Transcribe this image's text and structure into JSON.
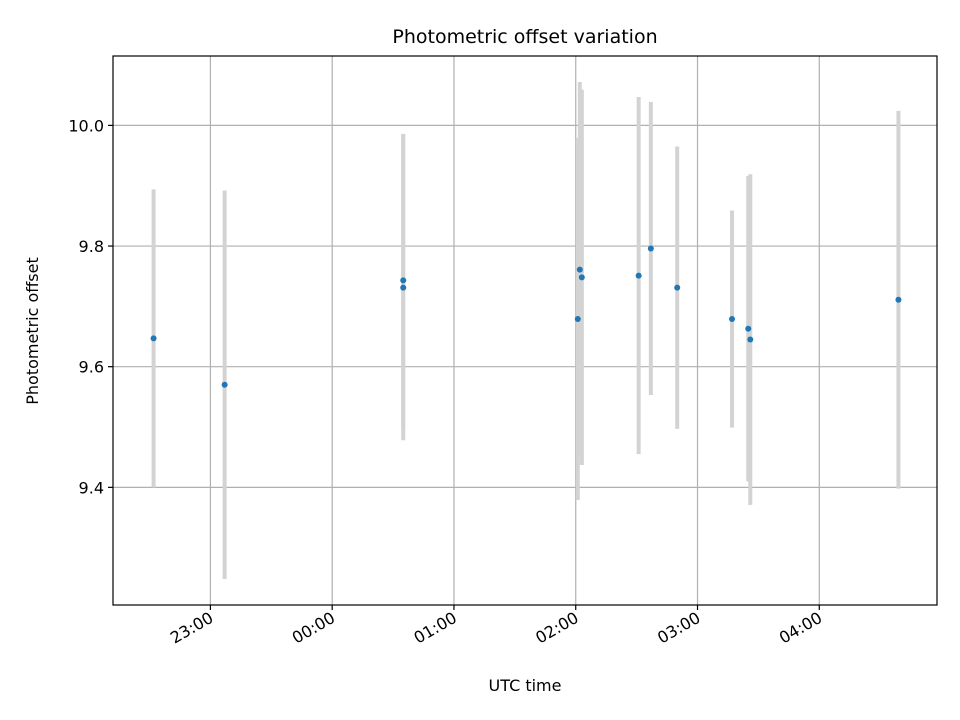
{
  "chart_data": {
    "type": "scatter",
    "title": "Photometric offset variation",
    "xlabel": "UTC time",
    "ylabel": "Photometric offset",
    "x_axis": {
      "range": [
        "22:12",
        "04:58"
      ],
      "ticks": [
        "23:00",
        "00:00",
        "01:00",
        "02:00",
        "03:00",
        "04:00"
      ]
    },
    "y_axis": {
      "range": [
        9.205,
        10.115
      ],
      "ticks": [
        "9.4",
        "9.6",
        "9.8",
        "10.0"
      ]
    },
    "grid": true,
    "colors": {
      "point": "#1f77b4",
      "errorbar": "#d3d3d3",
      "grid": "#b0b0b0"
    },
    "points": [
      {
        "time": "22:32",
        "y": 9.647,
        "yerr": 0.247
      },
      {
        "time": "23:07",
        "y": 9.57,
        "yerr": 0.322
      },
      {
        "time": "00:35",
        "y": 9.743,
        "yerr": 0.243
      },
      {
        "time": "00:35",
        "y": 9.731,
        "yerr": 0.253
      },
      {
        "time": "02:01",
        "y": 9.679,
        "yerr": 0.3
      },
      {
        "time": "02:02",
        "y": 9.761,
        "yerr": 0.311
      },
      {
        "time": "02:03",
        "y": 9.748,
        "yerr": 0.311
      },
      {
        "time": "02:31",
        "y": 9.751,
        "yerr": 0.296
      },
      {
        "time": "02:37",
        "y": 9.796,
        "yerr": 0.243
      },
      {
        "time": "02:50",
        "y": 9.731,
        "yerr": 0.234
      },
      {
        "time": "03:17",
        "y": 9.679,
        "yerr": 0.18
      },
      {
        "time": "03:25",
        "y": 9.663,
        "yerr": 0.253
      },
      {
        "time": "03:26",
        "y": 9.645,
        "yerr": 0.274
      },
      {
        "time": "04:39",
        "y": 9.711,
        "yerr": 0.313
      }
    ]
  }
}
